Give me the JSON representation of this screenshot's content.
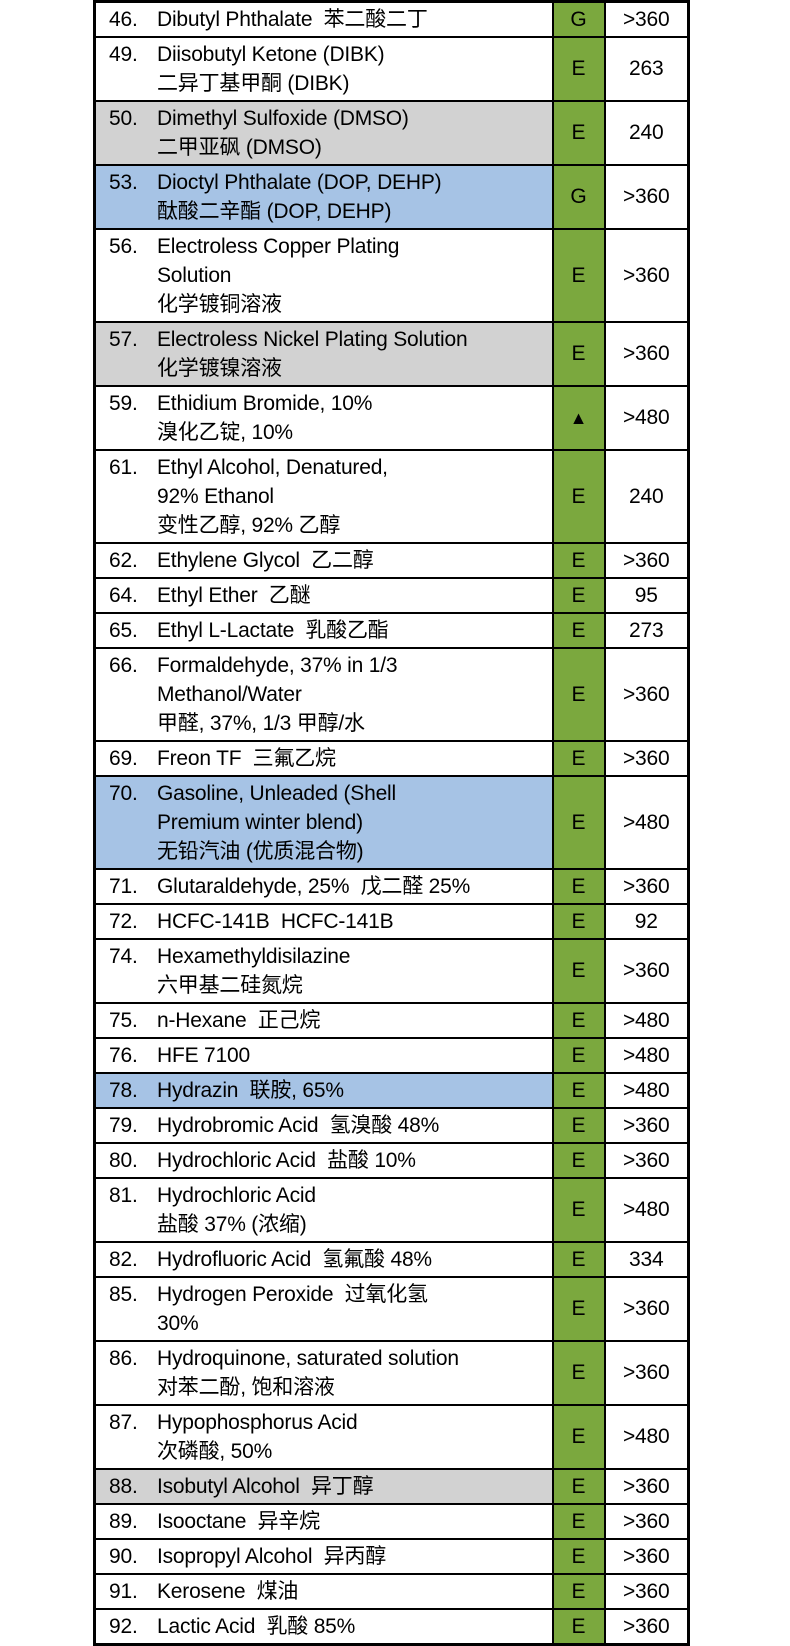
{
  "table": {
    "description": "chemical-resistance-table-fragment",
    "colors": {
      "rating_column_green": "#7ba83e",
      "highlight_gray": "#d2d2d2",
      "highlight_blue": "#a6c3e5",
      "border_black": "#000000",
      "row_white": "#ffffff"
    },
    "rating_symbols": {
      "excellent": "E",
      "good": "G",
      "triangle": "▲"
    },
    "rows": [
      {
        "no": "46.",
        "lines": [
          "Dibutyl Phthalate  苯二酸二丁"
        ],
        "rating": "G",
        "value": ">360",
        "bg": "white"
      },
      {
        "no": "49.",
        "lines": [
          "Diisobutyl Ketone (DIBK)",
          "二异丁基甲酮 (DIBK)"
        ],
        "rating": "E",
        "value": "263",
        "bg": "white"
      },
      {
        "no": "50.",
        "lines": [
          "Dimethyl Sulfoxide (DMSO)",
          "二甲亚砜 (DMSO)"
        ],
        "rating": "E",
        "value": "240",
        "bg": "gray"
      },
      {
        "no": "53.",
        "lines": [
          "Dioctyl Phthalate (DOP, DEHP)",
          "酞酸二辛酯 (DOP, DEHP)"
        ],
        "rating": "G",
        "value": ">360",
        "bg": "blue"
      },
      {
        "no": "56.",
        "lines": [
          "Electroless Copper Plating",
          "Solution",
          "化学镀铜溶液"
        ],
        "rating": "E",
        "value": ">360",
        "bg": "white"
      },
      {
        "no": "57.",
        "lines": [
          "Electroless Nickel Plating Solution",
          "化学镀镍溶液"
        ],
        "rating": "E",
        "value": ">360",
        "bg": "gray"
      },
      {
        "no": "59.",
        "lines": [
          "Ethidium Bromide, 10%",
          "溴化乙锭, 10%"
        ],
        "rating": "▲",
        "value": ">480",
        "bg": "white"
      },
      {
        "no": "61.",
        "lines": [
          "Ethyl Alcohol, Denatured,",
          "92% Ethanol",
          "变性乙醇, 92% 乙醇"
        ],
        "rating": "E",
        "value": "240",
        "bg": "white"
      },
      {
        "no": "62.",
        "lines": [
          "Ethylene Glycol  乙二醇"
        ],
        "rating": "E",
        "value": ">360",
        "bg": "white"
      },
      {
        "no": "64.",
        "lines": [
          "Ethyl Ether  乙醚"
        ],
        "rating": "E",
        "value": "95",
        "bg": "white"
      },
      {
        "no": "65.",
        "lines": [
          "Ethyl L-Lactate  乳酸乙酯"
        ],
        "rating": "E",
        "value": "273",
        "bg": "white"
      },
      {
        "no": "66.",
        "lines": [
          "Formaldehyde, 37% in 1/3",
          "Methanol/Water",
          "甲醛, 37%, 1/3 甲醇/水"
        ],
        "rating": "E",
        "value": ">360",
        "bg": "white"
      },
      {
        "no": "69.",
        "lines": [
          "Freon TF  三氟乙烷"
        ],
        "rating": "E",
        "value": ">360",
        "bg": "white"
      },
      {
        "no": "70.",
        "lines": [
          "Gasoline, Unleaded (Shell",
          "Premium winter blend)",
          "无铅汽油 (优质混合物)"
        ],
        "rating": "E",
        "value": ">480",
        "bg": "blue"
      },
      {
        "no": "71.",
        "lines": [
          "Glutaraldehyde, 25%  戊二醛 25%"
        ],
        "rating": "E",
        "value": ">360",
        "bg": "white"
      },
      {
        "no": "72.",
        "lines": [
          "HCFC-141B  HCFC-141B"
        ],
        "rating": "E",
        "value": "92",
        "bg": "white"
      },
      {
        "no": "74.",
        "lines": [
          "Hexamethyldisilazine",
          "六甲基二硅氮烷"
        ],
        "rating": "E",
        "value": ">360",
        "bg": "white"
      },
      {
        "no": "75.",
        "lines": [
          "n-Hexane  正己烷"
        ],
        "rating": "E",
        "value": ">480",
        "bg": "white"
      },
      {
        "no": "76.",
        "lines": [
          "HFE 7100"
        ],
        "rating": "E",
        "value": ">480",
        "bg": "white"
      },
      {
        "no": "78.",
        "lines": [
          "Hydrazin  联胺, 65%"
        ],
        "rating": "E",
        "value": ">480",
        "bg": "blue"
      },
      {
        "no": "79.",
        "lines": [
          "Hydrobromic Acid  氢溴酸 48%"
        ],
        "rating": "E",
        "value": ">360",
        "bg": "white"
      },
      {
        "no": "80.",
        "lines": [
          "Hydrochloric Acid  盐酸 10%"
        ],
        "rating": "E",
        "value": ">360",
        "bg": "white"
      },
      {
        "no": "81.",
        "lines": [
          "Hydrochloric Acid",
          "盐酸 37% (浓缩)"
        ],
        "rating": "E",
        "value": ">480",
        "bg": "white"
      },
      {
        "no": "82.",
        "lines": [
          "Hydrofluoric Acid  氢氟酸 48%"
        ],
        "rating": "E",
        "value": "334",
        "bg": "white"
      },
      {
        "no": "85.",
        "lines": [
          "Hydrogen Peroxide  过氧化氢",
          "30%"
        ],
        "rating": "E",
        "value": ">360",
        "bg": "white"
      },
      {
        "no": "86.",
        "lines": [
          "Hydroquinone, saturated solution",
          "对苯二酚, 饱和溶液"
        ],
        "rating": "E",
        "value": ">360",
        "bg": "white"
      },
      {
        "no": "87.",
        "lines": [
          "Hypophosphorus Acid",
          "次磷酸, 50%"
        ],
        "rating": "E",
        "value": ">480",
        "bg": "white"
      },
      {
        "no": "88.",
        "lines": [
          "Isobutyl Alcohol  异丁醇"
        ],
        "rating": "E",
        "value": ">360",
        "bg": "gray"
      },
      {
        "no": "89.",
        "lines": [
          "Isooctane  异辛烷"
        ],
        "rating": "E",
        "value": ">360",
        "bg": "white"
      },
      {
        "no": "90.",
        "lines": [
          "Isopropyl Alcohol  异丙醇"
        ],
        "rating": "E",
        "value": ">360",
        "bg": "white"
      },
      {
        "no": "91.",
        "lines": [
          "Kerosene  煤油"
        ],
        "rating": "E",
        "value": ">360",
        "bg": "white"
      },
      {
        "no": "92.",
        "lines": [
          "Lactic Acid  乳酸 85%"
        ],
        "rating": "E",
        "value": ">360",
        "bg": "white"
      }
    ]
  }
}
